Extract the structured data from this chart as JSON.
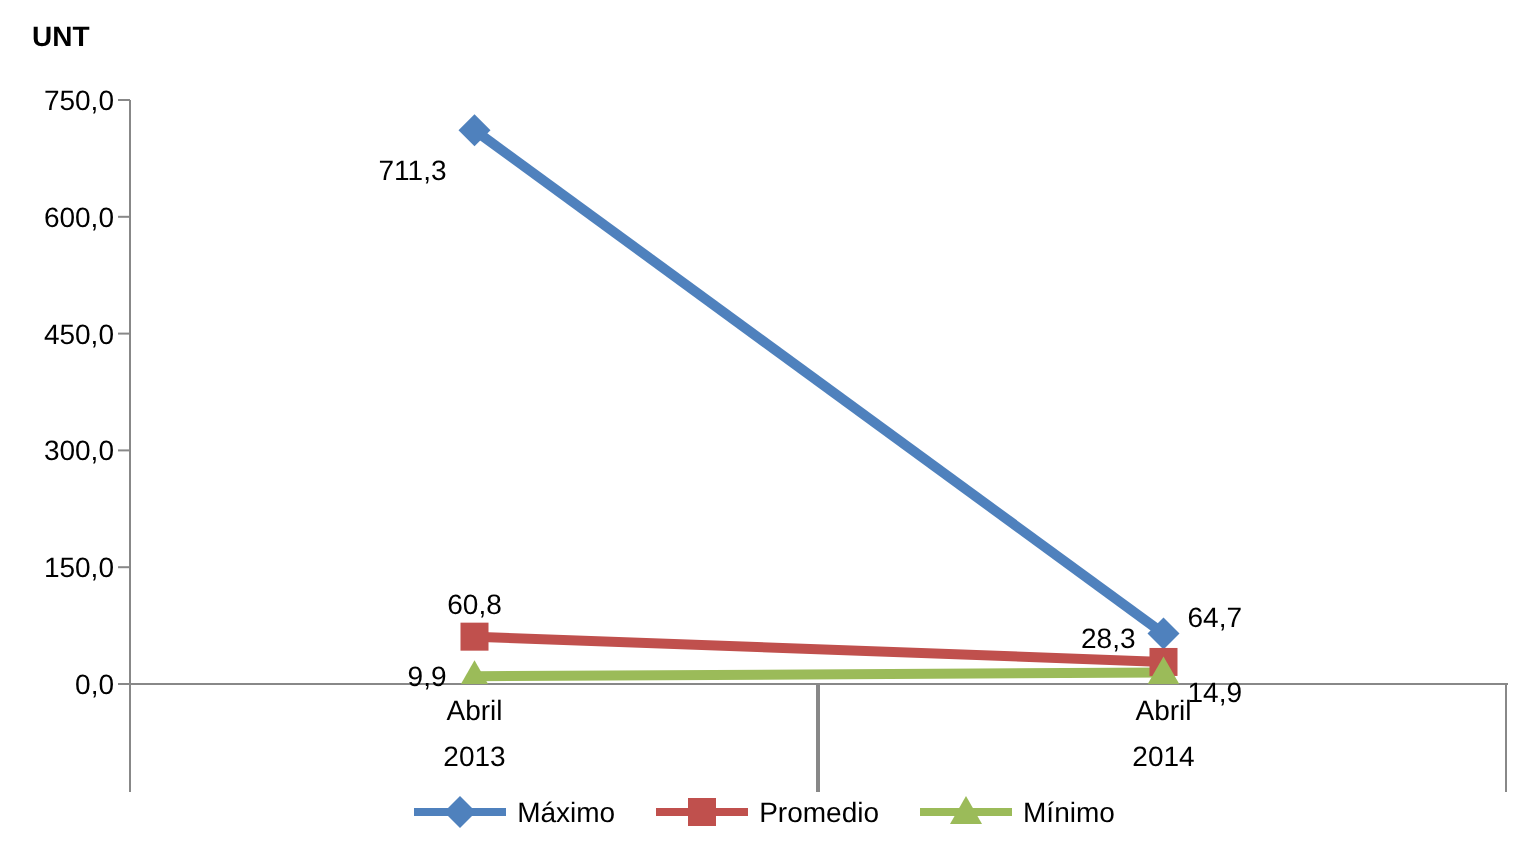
{
  "chart_data": {
    "type": "line",
    "ylabel": "UNT",
    "categories": [
      "Abril 2013",
      "Abril 2014"
    ],
    "series": [
      {
        "name": "Máximo",
        "color": "#4f81bd",
        "marker": "diamond",
        "values": [
          711.3,
          64.7
        ],
        "value_labels": [
          "711,3",
          "64,7"
        ]
      },
      {
        "name": "Promedio",
        "color": "#c0504d",
        "marker": "square",
        "values": [
          60.8,
          28.3
        ],
        "value_labels": [
          "60,8",
          "28,3"
        ]
      },
      {
        "name": "Mínimo",
        "color": "#9bbb59",
        "marker": "triangle",
        "values": [
          9.9,
          14.9
        ],
        "value_labels": [
          "9,9",
          "14,9"
        ]
      }
    ],
    "ylim": [
      0,
      750
    ],
    "yticks": [
      {
        "value": 0,
        "label": "0,0"
      },
      {
        "value": 150,
        "label": "150,0"
      },
      {
        "value": 300,
        "label": "300,0"
      },
      {
        "value": 450,
        "label": "450,0"
      },
      {
        "value": 600,
        "label": "600,0"
      },
      {
        "value": 750,
        "label": "750,0"
      }
    ],
    "grid": false,
    "legend": "bottom",
    "line_style": "solid"
  }
}
